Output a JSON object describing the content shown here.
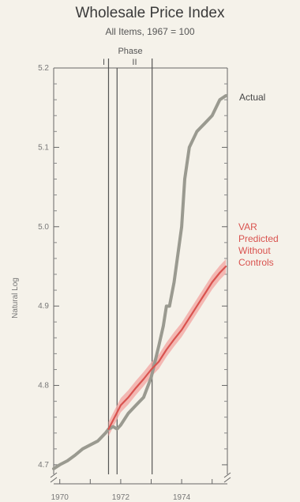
{
  "chart_data": {
    "type": "line",
    "title": "Wholesale Price Index",
    "subtitle": "All Items, 1967 = 100",
    "ylabel": "Natural Log",
    "xlabel": "",
    "ylim": [
      4.68,
      5.2
    ],
    "xlim": [
      1969.8,
      1975.5
    ],
    "yticks": [
      4.7,
      4.8,
      4.9,
      5.0,
      5.1,
      5.2
    ],
    "ytick_labels": [
      "4.7",
      "4.8",
      "4.9",
      "5.0",
      "5.1",
      "5.2"
    ],
    "xticks": [
      1970,
      1972,
      1974
    ],
    "xtick_labels": [
      "1970",
      "1972",
      "1974"
    ],
    "annotations": {
      "phase_label": "Phase",
      "phase_I_label": "I",
      "phase_II_label": "II",
      "phase_I_start": 1971.6,
      "phase_I_end": 1971.88,
      "phase_II_end": 1973.03
    },
    "series": [
      {
        "name": "Actual",
        "color": "#9a9a90",
        "x": [
          1969.8,
          1970.0,
          1970.25,
          1970.5,
          1970.75,
          1971.0,
          1971.25,
          1971.5,
          1971.6,
          1971.75,
          1971.88,
          1972.0,
          1972.25,
          1972.5,
          1972.75,
          1973.0,
          1973.25,
          1973.4,
          1973.5,
          1973.6,
          1973.75,
          1974.0,
          1974.1,
          1974.25,
          1974.5,
          1974.75,
          1975.0,
          1975.25,
          1975.45
        ],
        "y": [
          4.695,
          4.7,
          4.705,
          4.712,
          4.72,
          4.725,
          4.73,
          4.74,
          4.745,
          4.748,
          4.745,
          4.75,
          4.765,
          4.775,
          4.785,
          4.81,
          4.85,
          4.875,
          4.9,
          4.9,
          4.93,
          5.0,
          5.06,
          5.1,
          5.12,
          5.13,
          5.14,
          5.16,
          5.165
        ]
      },
      {
        "name": "VAR Predicted Without Controls",
        "color": "#d9534f",
        "band_color": "#f2a7a4",
        "x": [
          1971.6,
          1971.8,
          1972.0,
          1972.25,
          1972.5,
          1972.75,
          1973.0,
          1973.25,
          1973.5,
          1973.75,
          1974.0,
          1974.25,
          1974.5,
          1974.75,
          1975.0,
          1975.25,
          1975.45
        ],
        "y": [
          4.745,
          4.76,
          4.775,
          4.785,
          4.797,
          4.808,
          4.82,
          4.83,
          4.845,
          4.858,
          4.87,
          4.885,
          4.9,
          4.915,
          4.93,
          4.942,
          4.95
        ],
        "band_half_width": 0.009
      }
    ]
  }
}
